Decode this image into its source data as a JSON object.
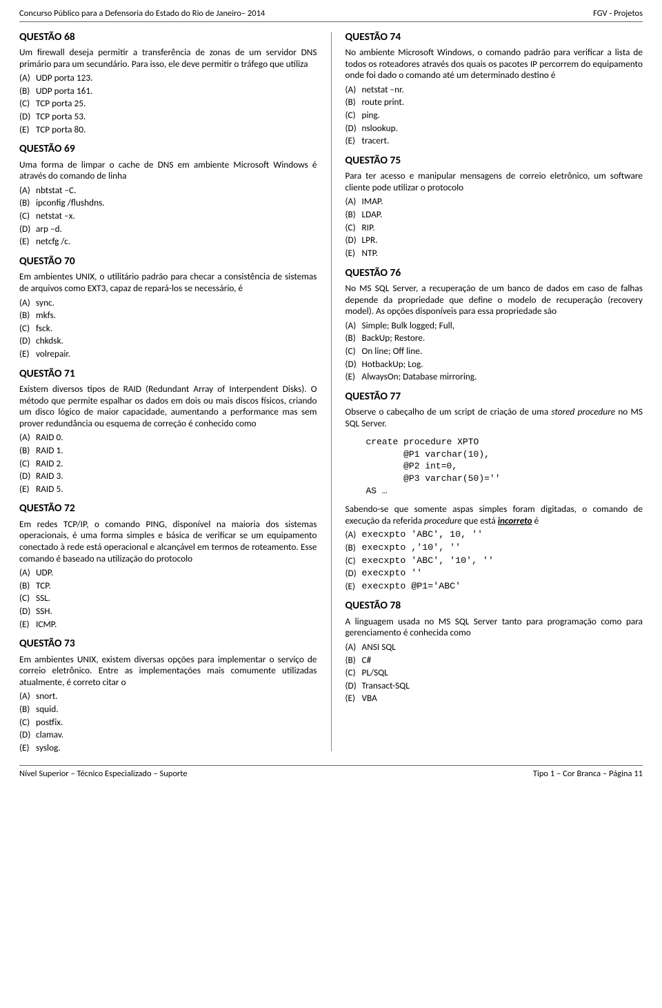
{
  "header": {
    "left": "Concurso Público para a Defensoria do Estado do Rio de Janeiro– 2014",
    "right": "FGV - Projetos"
  },
  "footer": {
    "left": "Nível Superior – Técnico Especializado – Suporte",
    "right": "Tipo 1 – Cor Branca – Página 11"
  },
  "left_col": {
    "q68": {
      "title": "QUESTÃO 68",
      "text": "Um firewall deseja permitir a transferência de zonas de um servidor DNS primário para um secundário. Para isso, ele deve permitir o tráfego que utiliza",
      "opts": [
        "UDP porta 123.",
        "UDP porta 161.",
        "TCP porta 25.",
        "TCP porta 53.",
        "TCP porta 80."
      ]
    },
    "q69": {
      "title": "QUESTÃO 69",
      "text": "Uma forma de limpar o cache de DNS em ambiente Microsoft Windows é através do comando de linha",
      "opts": [
        "nbtstat –C.",
        "ipconfig /flushdns.",
        "netstat –x.",
        "arp –d.",
        "netcfg /c."
      ]
    },
    "q70": {
      "title": "QUESTÃO 70",
      "text": "Em ambientes UNIX, o utilitário padrão para checar a consistência de sistemas de arquivos como EXT3, capaz de repará-los se necessário, é",
      "opts": [
        "sync.",
        "mkfs.",
        "fsck.",
        "chkdsk.",
        "volrepair."
      ]
    },
    "q71": {
      "title": "QUESTÃO 71",
      "text": "Existem diversos tipos de RAID (Redundant Array of Interpendent Disks). O método que permite espalhar os dados em dois ou mais discos físicos, criando um disco lógico de maior capacidade, aumentando a performance mas sem prover redundância ou esquema de correção é conhecido como",
      "opts": [
        "RAID 0.",
        "RAID 1.",
        "RAID 2.",
        "RAID 3.",
        "RAID 5."
      ]
    },
    "q72": {
      "title": "QUESTÃO 72",
      "text": "Em redes TCP/IP, o comando PING, disponível na maioria dos sistemas operacionais, é uma forma simples e básica de verificar se um equipamento conectado à rede está operacional e alcançável em termos de roteamento. Esse comando é baseado na utilização do protocolo",
      "opts": [
        "UDP.",
        "TCP.",
        "SSL.",
        "SSH.",
        "ICMP."
      ]
    },
    "q73": {
      "title": "QUESTÃO 73",
      "text": "Em ambientes UNIX, existem diversas opções para implementar o serviço de correio eletrônico. Entre as implementações mais comumente utilizadas atualmente, é correto citar o",
      "opts": [
        "snort.",
        "squid.",
        "postfix.",
        "clamav.",
        "syslog."
      ]
    }
  },
  "right_col": {
    "q74": {
      "title": "QUESTÃO 74",
      "text": "No ambiente Microsoft Windows, o comando padrão para verificar a lista de todos os roteadores através dos quais os pacotes IP percorrem do equipamento onde foi dado o comando até um determinado destino é",
      "opts": [
        "netstat –nr.",
        "route print.",
        "ping.",
        "nslookup.",
        "tracert."
      ]
    },
    "q75": {
      "title": "QUESTÃO 75",
      "text": "Para ter acesso e manipular mensagens de correio eletrônico, um software cliente pode utilizar o protocolo",
      "opts": [
        "IMAP.",
        "LDAP.",
        "RIP.",
        "LPR.",
        "NTP."
      ]
    },
    "q76": {
      "title": "QUESTÃO 76",
      "text": "No MS SQL Server, a recuperação de um banco de dados em caso de falhas depende da propriedade que define o modelo de recuperação (recovery model). As opções disponíveis para essa propriedade são",
      "opts": [
        "Simple; Bulk logged; Full,",
        "BackUp; Restore.",
        "On line; Off line.",
        "HotbackUp; Log.",
        "AlwaysOn; Database mirroring."
      ]
    },
    "q77": {
      "title": "QUESTÃO 77",
      "text1": "Observe o cabeçalho de um script de criação de uma ",
      "text1s": "stored procedure",
      "text1e": " no MS SQL Server.",
      "code": "create procedure XPTO\n       @P1 varchar(10),\n       @P2 int=0,\n       @P3 varchar(50)=''\nAS …",
      "text2a": "Sabendo-se que somente aspas simples foram digitadas, o comando de execução da referida ",
      "text2b": "procedure",
      "text2c": " que está ",
      "text2d": "incorreto",
      "text2e": " é",
      "opts": [
        "execxpto 'ABC', 10, ''",
        "execxpto ,'10', ''",
        "execxpto 'ABC', '10', ''",
        "execxpto ''",
        "execxpto @P1='ABC'"
      ]
    },
    "q78": {
      "title": "QUESTÃO 78",
      "text": "A linguagem usada no MS SQL Server tanto para programação como para gerenciamento é conhecida como",
      "opts": [
        "ANSI SQL",
        "C#",
        "PL/SQL",
        "Transact-SQL",
        "VBA"
      ]
    }
  },
  "labels": [
    "(A)",
    "(B)",
    "(C)",
    "(D)",
    "(E)"
  ]
}
